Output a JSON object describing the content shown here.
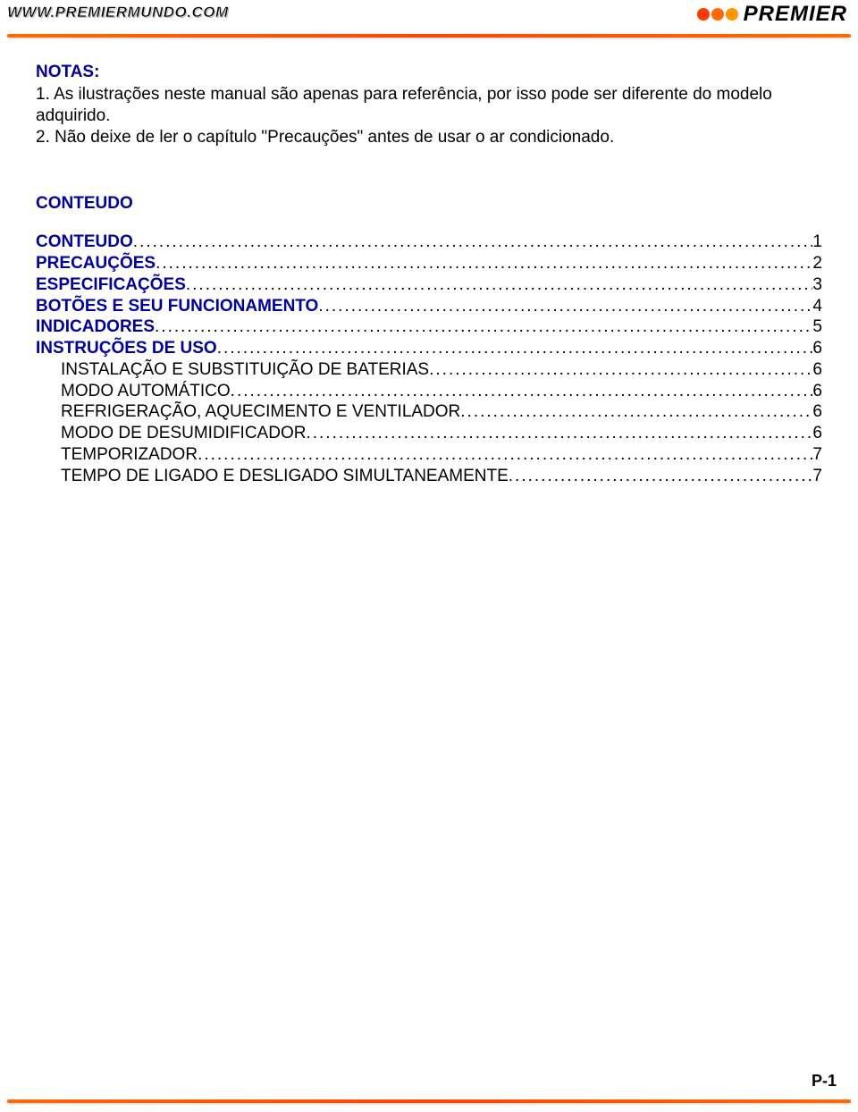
{
  "header": {
    "url": "WWW.PREMIERMUNDO.COM",
    "brand": "PREMIER",
    "dot_colors": [
      "#ff3b00",
      "#ff6a00",
      "#ff9500"
    ],
    "divider_color": "#ff6a00"
  },
  "notas": {
    "title": "NOTAS:",
    "line1": "1. As ilustrações neste manual são apenas para referência, por isso pode ser diferente do modelo adquirido.",
    "line2": "2. Não deixe de ler o capítulo \"Precauções\" antes de usar o ar condicionado."
  },
  "conteudo_heading": "CONTEUDO",
  "toc": [
    {
      "label": "CONTEUDO",
      "page": "1",
      "bold": true,
      "indent": false
    },
    {
      "label": "PRECAUÇÕES",
      "page": "2",
      "bold": true,
      "indent": false
    },
    {
      "label": "ESPECIFICAÇÕES",
      "page": "3",
      "bold": true,
      "indent": false
    },
    {
      "label": "BOTÕES E SEU FUNCIONAMENTO",
      "page": "4",
      "bold": true,
      "indent": false
    },
    {
      "label": "INDICADORES",
      "page": "5",
      "bold": true,
      "indent": false
    },
    {
      "label": "INSTRUÇÕES DE USO",
      "page": "6",
      "bold": true,
      "indent": false
    },
    {
      "label": "INSTALAÇÃO E SUBSTITUIÇÃO DE BATERIAS",
      "page": "6",
      "bold": false,
      "indent": true
    },
    {
      "label": "MODO AUTOMÁTICO",
      "page": "6",
      "bold": false,
      "indent": true
    },
    {
      "label": "REFRIGERAÇÃO, AQUECIMENTO E VENTILADOR",
      "page": "6",
      "bold": false,
      "indent": true
    },
    {
      "label": "MODO DE DESUMIDIFICADOR",
      "page": "6",
      "bold": false,
      "indent": true
    },
    {
      "label": "TEMPORIZADOR",
      "page": "7",
      "bold": false,
      "indent": true
    },
    {
      "label": "TEMPO DE LIGADO E DESLIGADO SIMULTANEAMENTE",
      "page": "7",
      "bold": false,
      "indent": true
    }
  ],
  "page_number": "P-1",
  "colors": {
    "accent_blue": "#000099",
    "text_black": "#000000"
  }
}
